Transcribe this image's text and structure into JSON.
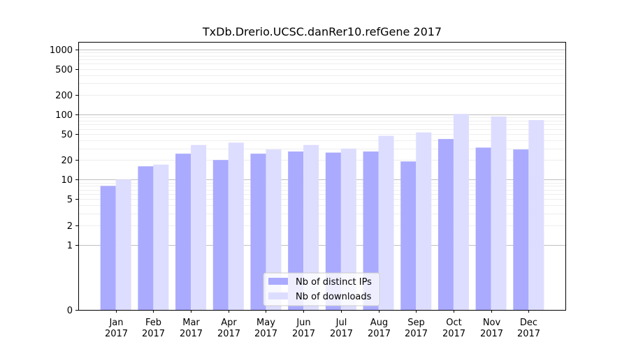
{
  "chart_data": {
    "type": "bar",
    "title": "TxDb.Drerio.UCSC.danRer10.refGene 2017",
    "xlabel": "",
    "ylabel": "",
    "yscale": "symlog",
    "ylim": [
      0,
      1300
    ],
    "yticks": [
      0,
      1,
      2,
      5,
      10,
      20,
      50,
      100,
      200,
      500,
      1000
    ],
    "ytick_labels": [
      "0",
      "1",
      "2",
      "5",
      "10",
      "20",
      "50",
      "100",
      "200",
      "500",
      "1000"
    ],
    "categories": [
      [
        "Jan",
        "2017"
      ],
      [
        "Feb",
        "2017"
      ],
      [
        "Mar",
        "2017"
      ],
      [
        "Apr",
        "2017"
      ],
      [
        "May",
        "2017"
      ],
      [
        "Jun",
        "2017"
      ],
      [
        "Jul",
        "2017"
      ],
      [
        "Aug",
        "2017"
      ],
      [
        "Sep",
        "2017"
      ],
      [
        "Oct",
        "2017"
      ],
      [
        "Nov",
        "2017"
      ],
      [
        "Dec",
        "2017"
      ]
    ],
    "series": [
      {
        "name": "Nb of distinct IPs",
        "color": "#aaaaff",
        "values": [
          8,
          16,
          25,
          20,
          25,
          27,
          26,
          27,
          19,
          42,
          31,
          29
        ]
      },
      {
        "name": "Nb of downloads",
        "color": "#ddddff",
        "values": [
          10,
          17,
          34,
          37,
          29,
          34,
          30,
          47,
          53,
          102,
          93,
          82
        ]
      }
    ],
    "legend": "lower-center",
    "grid": "y"
  }
}
